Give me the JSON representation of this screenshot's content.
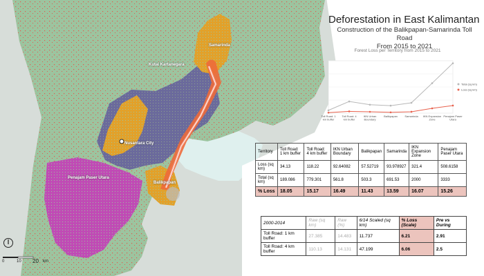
{
  "map": {
    "labels": {
      "samarinda": "Samarinda",
      "kutai": "Kutai Kartanegara",
      "nusantara": "Nusantara City",
      "penajam": "Penajam Paser Utara",
      "balikpapan": "Balikpapan"
    },
    "scale": {
      "zero": "0",
      "ten": "10",
      "twenty": "20",
      "unit": "km"
    },
    "colors": {
      "sea": "#d7ddd9",
      "land": "#9cc49f",
      "deforestation": "#e05a4e",
      "samarinda_area": "#e2a12a",
      "ikn_zone": "#6b6a9c",
      "penajam_area": "#c04bb5",
      "road_buffer": "#ee6a3a",
      "water_light": "#dff0ee"
    }
  },
  "header": {
    "title": "Deforestation in East Kalimantan",
    "subtitle_line1": "Construction of the Balikpapan-Samarinda Toll Road",
    "subtitle_line2": "From 2015 to 2021"
  },
  "chart_data": {
    "type": "line",
    "title": "Forest Loss per Territory from 2015 to 2021",
    "categories": [
      "Toll Road: 1 km buffer",
      "Toll Road: 4 km buffer",
      "IKN Urban Boundary",
      "Balikpapan",
      "Samarinda",
      "IKN Expansion Zone",
      "Penajam Paser Utara"
    ],
    "series": [
      {
        "name": "Total (sq km)",
        "values": [
          189.086,
          779.301,
          561.8,
          503.3,
          691.53,
          2000,
          3333
        ]
      },
      {
        "name": "Loss (sq km)",
        "values": [
          34.13,
          118.22,
          92.64082,
          57.52719,
          93.978927,
          321.4,
          508.6158
        ]
      }
    ],
    "legend_position": "right"
  },
  "table1": {
    "headers": [
      "Territory",
      "Toll Road: 1 km buffer",
      "Toll Road: 4 km buffer",
      "IKN Urban Boundary",
      "Balikpapan",
      "Samarinda",
      "IKN Expansion Zone",
      "Penajam Paser Utara"
    ],
    "rows": [
      [
        "Loss (sq km)",
        "34.13",
        "118.22",
        "92.64082",
        "57.52719",
        "93.978927",
        "321.4",
        "508.6158"
      ],
      [
        "Total (sq km)",
        "189.086",
        "779.301",
        "561.8",
        "503.3",
        "691.53",
        "2000",
        "3333"
      ],
      [
        "% Loss",
        "18.05",
        "15.17",
        "16.49",
        "11.43",
        "13.59",
        "16.07",
        "15.26"
      ]
    ]
  },
  "table2": {
    "headers": [
      "2000-2014",
      "Raw (sq km)",
      "Raw (%)",
      "6/14 Scaled (sq km)",
      "% Loss (Scale)",
      "Pre vs During"
    ],
    "rows": [
      [
        "Toll Road: 1 km buffer",
        "27.385",
        "14.483",
        "11.737",
        "6.21",
        "2.91"
      ],
      [
        "Toll Road: 4 km buffer",
        "110.13",
        "14.131",
        "47.199",
        "6.06",
        "2.5"
      ]
    ]
  }
}
